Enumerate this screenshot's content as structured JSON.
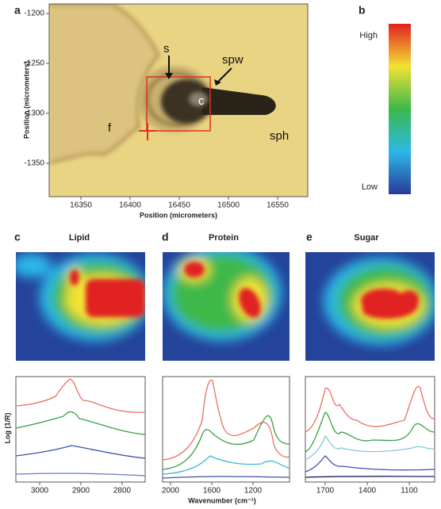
{
  "panels": {
    "a": {
      "label": "a",
      "y_axis_label": "Position (micrometers)",
      "x_axis_label": "Position (micrometers)",
      "y_ticks": [
        "-1200",
        "-1250",
        "-1300",
        "-1350"
      ],
      "x_ticks": [
        "16350",
        "16400",
        "16450",
        "16500",
        "16550"
      ],
      "annotations": [
        "s",
        "spw",
        "c",
        "f",
        "sph"
      ]
    },
    "b": {
      "label": "b",
      "high": "High",
      "low": "Low"
    },
    "c": {
      "label": "c",
      "title": "Lipid",
      "x_ticks": [
        "3000",
        "2900",
        "2800"
      ]
    },
    "d": {
      "label": "d",
      "title": "Protein",
      "x_ticks": [
        "2000",
        "1600",
        "1200"
      ]
    },
    "e": {
      "label": "e",
      "title": "Sugar",
      "x_ticks": [
        "1700",
        "1400",
        "1100"
      ]
    },
    "spectra": {
      "y_axis_label": "Log (1/R)",
      "x_axis_label": "Wavenumber (cm⁻¹)"
    }
  }
}
